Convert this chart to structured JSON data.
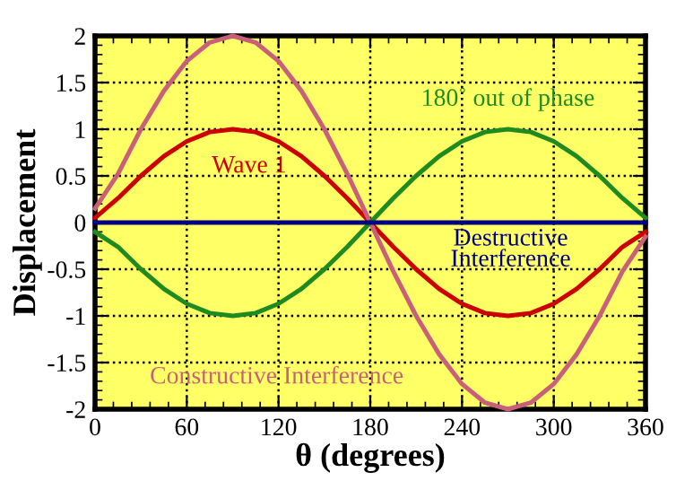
{
  "chart_data": {
    "type": "line",
    "xlabel": "θ (degrees)",
    "ylabel": "Displacement",
    "x": [
      0,
      15,
      30,
      45,
      60,
      75,
      90,
      105,
      120,
      135,
      150,
      165,
      180,
      195,
      210,
      225,
      240,
      255,
      270,
      285,
      300,
      315,
      330,
      345,
      360
    ],
    "series": [
      {
        "color": "#cc0000",
        "values": [
          0.05,
          0.26,
          0.5,
          0.71,
          0.87,
          0.97,
          1,
          0.97,
          0.87,
          0.71,
          0.5,
          0.26,
          0,
          -0.26,
          -0.5,
          -0.71,
          -0.87,
          -0.97,
          -1,
          -0.97,
          -0.87,
          -0.71,
          -0.5,
          -0.26,
          -0.1
        ]
      },
      {
        "color": "#c8607a",
        "values": [
          0.15,
          0.52,
          1,
          1.41,
          1.73,
          1.93,
          2,
          1.93,
          1.73,
          1.41,
          1,
          0.52,
          0,
          -0.52,
          -1,
          -1.41,
          -1.73,
          -1.93,
          -2,
          -1.93,
          -1.73,
          -1.41,
          -1,
          -0.52,
          -0.15
        ]
      },
      {
        "color": "#1f8a1f",
        "values": [
          -0.1,
          -0.26,
          -0.5,
          -0.71,
          -0.87,
          -0.97,
          -1,
          -0.97,
          -0.87,
          -0.71,
          -0.5,
          -0.26,
          0,
          0.26,
          0.5,
          0.71,
          0.87,
          0.97,
          1,
          0.97,
          0.87,
          0.71,
          0.5,
          0.26,
          0.05
        ]
      },
      {
        "color": "#000080",
        "values": [
          0,
          0,
          0,
          0,
          0,
          0,
          0,
          0,
          0,
          0,
          0,
          0,
          0,
          0,
          0,
          0,
          0,
          0,
          0,
          0,
          0,
          0,
          0,
          0,
          0
        ]
      }
    ],
    "annotations": [
      "Wave 1",
      "Constructive Interference",
      "180˚ out of phase",
      "Destructive\nInterference"
    ],
    "xlim": [
      0,
      360
    ],
    "xticks": [
      0,
      60,
      120,
      180,
      240,
      300,
      360
    ],
    "ylim": [
      -2,
      2
    ],
    "yticks": [
      -2,
      -1.5,
      -1,
      -0.5,
      0,
      0.5,
      1,
      1.5,
      2
    ],
    "grid": true,
    "marker": "none",
    "line_style": "solid",
    "legend": false
  }
}
